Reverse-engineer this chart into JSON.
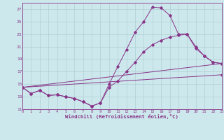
{
  "bg_color": "#cce8ec",
  "grid_color": "#b0d0d4",
  "line_color": "#883388",
  "xlabel": "Windchill (Refroidissement éolien,°C)",
  "xlim": [
    0,
    23
  ],
  "ylim": [
    11,
    28
  ],
  "yticks": [
    11,
    13,
    15,
    17,
    19,
    21,
    23,
    25,
    27
  ],
  "xticks": [
    0,
    1,
    2,
    3,
    4,
    5,
    6,
    7,
    8,
    9,
    10,
    11,
    12,
    13,
    14,
    15,
    16,
    17,
    18,
    19,
    20,
    21,
    22,
    23
  ],
  "series": [
    {
      "x": [
        0,
        1,
        2,
        3,
        4,
        5,
        6,
        7,
        8,
        9,
        10,
        11,
        12,
        13,
        14,
        15,
        16,
        17,
        18,
        19,
        20,
        21,
        22,
        23
      ],
      "y": [
        14.5,
        13.5,
        14.0,
        13.2,
        13.3,
        13.0,
        12.7,
        12.2,
        11.5,
        12.0,
        15.0,
        17.8,
        20.5,
        23.3,
        25.0,
        27.3,
        27.2,
        26.0,
        23.0,
        23.0,
        20.7,
        19.5,
        18.5,
        18.3
      ]
    },
    {
      "x": [
        0,
        1,
        2,
        3,
        4,
        5,
        6,
        7,
        8,
        9,
        10,
        11,
        12,
        13,
        14,
        15,
        16,
        17,
        18,
        19,
        20,
        21,
        22,
        23
      ],
      "y": [
        14.5,
        13.5,
        14.0,
        13.2,
        13.3,
        13.0,
        12.7,
        12.2,
        11.5,
        12.0,
        14.5,
        15.5,
        17.0,
        18.5,
        20.2,
        21.3,
        22.0,
        22.5,
        22.8,
        23.0,
        21.0,
        19.5,
        18.5,
        18.3
      ]
    },
    {
      "x": [
        0,
        23
      ],
      "y": [
        14.5,
        18.3
      ]
    },
    {
      "x": [
        0,
        23
      ],
      "y": [
        14.5,
        16.5
      ]
    }
  ]
}
